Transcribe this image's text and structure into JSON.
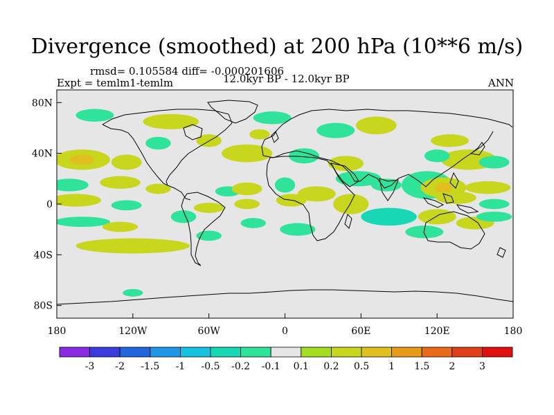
{
  "chart_data": {
    "type": "heatmap",
    "title": "Divergence (smoothed) at 200 hPa (10**6 m/s)",
    "stats": "rmsd= 0.105584 diff= -0.000201606",
    "left_label": "Expt = temlm1-temlm",
    "center_label": "12.0kyr BP - 12.0kyr BP",
    "right_label": "ANN",
    "x_ticks": [
      "180",
      "120W",
      "60W",
      "0",
      "60E",
      "120E",
      "180"
    ],
    "x_tick_values": [
      -180,
      -120,
      -60,
      0,
      60,
      120,
      180
    ],
    "y_ticks": [
      "80N",
      "40N",
      "0",
      "40S",
      "80S"
    ],
    "y_tick_values": [
      80,
      40,
      0,
      -40,
      -80
    ],
    "xlim": [
      -180,
      180
    ],
    "ylim": [
      -90,
      90
    ],
    "levels": [
      "-3",
      "-2",
      "-1.5",
      "-1",
      "-0.5",
      "-0.2",
      "-0.1",
      "0.1",
      "0.2",
      "0.5",
      "1",
      "1.5",
      "2",
      "3"
    ],
    "colors": [
      "#8a2be2",
      "#3c3cdc",
      "#2266dd",
      "#1e96e6",
      "#16c2e0",
      "#18d7b4",
      "#2fe39a",
      "#e6e6e6",
      "#a4dd22",
      "#c8d61e",
      "#e0c020",
      "#e89a1a",
      "#e86a1a",
      "#e04018",
      "#e01010"
    ],
    "patches": [
      {
        "lon": -160,
        "lat": 35,
        "rx": 22,
        "ry": 8,
        "value": 0.35
      },
      {
        "lon": -160,
        "lat": 35,
        "rx": 10,
        "ry": 4,
        "value": 0.6
      },
      {
        "lon": -125,
        "lat": 33,
        "rx": 12,
        "ry": 6,
        "value": 0.2
      },
      {
        "lon": -170,
        "lat": 15,
        "rx": 15,
        "ry": 5,
        "value": -0.2
      },
      {
        "lon": -130,
        "lat": 17,
        "rx": 16,
        "ry": 5,
        "value": 0.3
      },
      {
        "lon": -165,
        "lat": 3,
        "rx": 20,
        "ry": 5,
        "value": 0.2
      },
      {
        "lon": -125,
        "lat": -1,
        "rx": 12,
        "ry": 4,
        "value": -0.2
      },
      {
        "lon": -160,
        "lat": -14,
        "rx": 22,
        "ry": 4,
        "value": -0.2
      },
      {
        "lon": -130,
        "lat": -18,
        "rx": 14,
        "ry": 4,
        "value": 0.2
      },
      {
        "lon": -120,
        "lat": -33,
        "rx": 45,
        "ry": 6,
        "value": 0.2
      },
      {
        "lon": -80,
        "lat": -10,
        "rx": 10,
        "ry": 5,
        "value": -0.2
      },
      {
        "lon": -100,
        "lat": 12,
        "rx": 10,
        "ry": 4,
        "value": 0.2
      },
      {
        "lon": -60,
        "lat": -3,
        "rx": 12,
        "ry": 4,
        "value": 0.2
      },
      {
        "lon": -45,
        "lat": 10,
        "rx": 10,
        "ry": 4,
        "value": -0.2
      },
      {
        "lon": -30,
        "lat": 0,
        "rx": 10,
        "ry": 4,
        "value": 0.2
      },
      {
        "lon": -30,
        "lat": 12,
        "rx": 12,
        "ry": 5,
        "value": 0.2
      },
      {
        "lon": -60,
        "lat": -25,
        "rx": 10,
        "ry": 4,
        "value": -0.2
      },
      {
        "lon": -25,
        "lat": -15,
        "rx": 10,
        "ry": 4,
        "value": -0.2
      },
      {
        "lon": 10,
        "lat": -20,
        "rx": 14,
        "ry": 5,
        "value": -0.2
      },
      {
        "lon": 5,
        "lat": 3,
        "rx": 12,
        "ry": 5,
        "value": 0.2
      },
      {
        "lon": 25,
        "lat": 8,
        "rx": 15,
        "ry": 6,
        "value": 0.3
      },
      {
        "lon": 0,
        "lat": 15,
        "rx": 8,
        "ry": 6,
        "value": -0.2
      },
      {
        "lon": 52,
        "lat": 0,
        "rx": 14,
        "ry": 8,
        "value": 0.4
      },
      {
        "lon": 58,
        "lat": 20,
        "rx": 18,
        "ry": 6,
        "value": -0.2
      },
      {
        "lon": 48,
        "lat": 32,
        "rx": 14,
        "ry": 6,
        "value": 0.2
      },
      {
        "lon": 80,
        "lat": 15,
        "rx": 12,
        "ry": 5,
        "value": -0.2
      },
      {
        "lon": 82,
        "lat": -10,
        "rx": 22,
        "ry": 7,
        "value": -0.3
      },
      {
        "lon": 112,
        "lat": 15,
        "rx": 20,
        "ry": 11,
        "value": -0.2
      },
      {
        "lon": 125,
        "lat": 13,
        "rx": 18,
        "ry": 8,
        "value": 0.3
      },
      {
        "lon": 125,
        "lat": 13,
        "rx": 7,
        "ry": 4,
        "value": 0.7
      },
      {
        "lon": 135,
        "lat": 5,
        "rx": 16,
        "ry": 5,
        "value": 0.2
      },
      {
        "lon": 160,
        "lat": 13,
        "rx": 18,
        "ry": 5,
        "value": 0.2
      },
      {
        "lon": 145,
        "lat": 35,
        "rx": 22,
        "ry": 8,
        "value": 0.25
      },
      {
        "lon": 120,
        "lat": 38,
        "rx": 10,
        "ry": 5,
        "value": -0.2
      },
      {
        "lon": 165,
        "lat": 33,
        "rx": 12,
        "ry": 5,
        "value": -0.2
      },
      {
        "lon": 130,
        "lat": 50,
        "rx": 15,
        "ry": 5,
        "value": 0.2
      },
      {
        "lon": 120,
        "lat": -10,
        "rx": 15,
        "ry": 6,
        "value": 0.3
      },
      {
        "lon": 150,
        "lat": -15,
        "rx": 15,
        "ry": 5,
        "value": 0.2
      },
      {
        "lon": 110,
        "lat": -22,
        "rx": 15,
        "ry": 5,
        "value": -0.2
      },
      {
        "lon": 165,
        "lat": 0,
        "rx": 12,
        "ry": 4,
        "value": -0.2
      },
      {
        "lon": 165,
        "lat": -10,
        "rx": 14,
        "ry": 4,
        "value": -0.2
      },
      {
        "lon": -30,
        "lat": 40,
        "rx": 20,
        "ry": 7,
        "value": 0.2
      },
      {
        "lon": 15,
        "lat": 38,
        "rx": 12,
        "ry": 6,
        "value": -0.2
      },
      {
        "lon": 40,
        "lat": 58,
        "rx": 15,
        "ry": 6,
        "value": -0.2
      },
      {
        "lon": 72,
        "lat": 62,
        "rx": 16,
        "ry": 7,
        "value": 0.2
      },
      {
        "lon": -10,
        "lat": 68,
        "rx": 15,
        "ry": 5,
        "value": -0.2
      },
      {
        "lon": -90,
        "lat": 65,
        "rx": 22,
        "ry": 6,
        "value": 0.2
      },
      {
        "lon": -150,
        "lat": 70,
        "rx": 15,
        "ry": 5,
        "value": -0.2
      },
      {
        "lon": -60,
        "lat": 50,
        "rx": 10,
        "ry": 5,
        "value": 0.2
      },
      {
        "lon": -100,
        "lat": 48,
        "rx": 10,
        "ry": 5,
        "value": -0.2
      },
      {
        "lon": -20,
        "lat": 55,
        "rx": 8,
        "ry": 4,
        "value": 0.2
      },
      {
        "lon": -120,
        "lat": -70,
        "rx": 8,
        "ry": 3,
        "value": -0.2
      }
    ]
  }
}
